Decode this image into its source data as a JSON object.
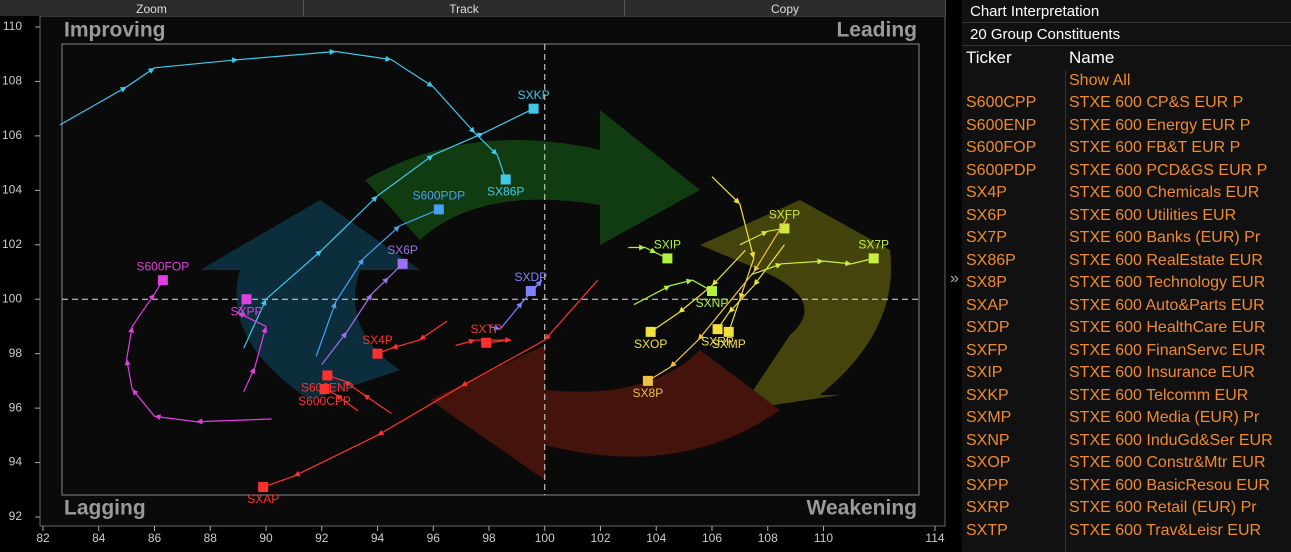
{
  "toolbar": [
    "Zoom",
    "Track",
    "Copy"
  ],
  "chart_data": {
    "type": "line",
    "quadrants": {
      "top_left": "Improving",
      "top_right": "Leading",
      "bottom_left": "Lagging",
      "bottom_right": "Weakening"
    },
    "xlim": [
      82,
      114
    ],
    "ylim": [
      92,
      110
    ],
    "xticks": [
      82,
      84,
      86,
      88,
      90,
      92,
      94,
      96,
      98,
      100,
      102,
      104,
      106,
      108,
      110,
      114
    ],
    "yticks": [
      92,
      94,
      96,
      98,
      100,
      102,
      104,
      106,
      108,
      110
    ],
    "center": [
      100,
      100
    ],
    "series": [
      {
        "name": "SXKP",
        "color": "#40c8e8",
        "x": [
          89.2,
          90,
          92,
          94,
          96,
          97.8,
          99.6
        ],
        "y": [
          98.2,
          100,
          101.8,
          103.8,
          105.3,
          106.1,
          107.0
        ]
      },
      {
        "name": "SX86P",
        "color": "#40c8e8",
        "x": [
          82.6,
          85,
          86,
          89,
          92.5,
          94.5,
          96,
          97.5,
          98.3,
          98.6
        ],
        "y": [
          106.4,
          107.8,
          108.5,
          108.8,
          109.1,
          108.8,
          107.8,
          106.1,
          105.3,
          104.4
        ]
      },
      {
        "name": "S600PDP",
        "color": "#4aa0f0",
        "x": [
          91.8,
          92.5,
          93.5,
          94.8,
          96.2
        ],
        "y": [
          97.9,
          99.9,
          101.5,
          102.7,
          103.3
        ]
      },
      {
        "name": "SX6P",
        "color": "#a070f0",
        "x": [
          92,
          92.9,
          93.8,
          94.4,
          94.9
        ],
        "y": [
          97.6,
          98.8,
          100.2,
          100.8,
          101.3
        ]
      },
      {
        "name": "S600FOP",
        "color": "#e040e0",
        "x": [
          90.2,
          87.5,
          86,
          85.2,
          85,
          85.2,
          86,
          86.3
        ],
        "y": [
          95.6,
          95.5,
          95.7,
          96.7,
          97.8,
          99,
          100.2,
          100.7
        ]
      },
      {
        "name": "SXPP",
        "color": "#e040e0",
        "x": [
          89.2,
          89.6,
          90,
          89,
          89.3
        ],
        "y": [
          96.6,
          97.5,
          99,
          99.5,
          100.0
        ]
      },
      {
        "name": "SXDP",
        "color": "#8080ff",
        "x": [
          98,
          98.4,
          99.2,
          99.9,
          99.5
        ],
        "y": [
          99,
          98.9,
          99.9,
          100.7,
          100.3
        ]
      },
      {
        "name": "SXTP",
        "color": "#ff3030",
        "x": [
          96.8,
          97.5,
          98.8,
          97.9
        ],
        "y": [
          98.3,
          98.5,
          98.5,
          98.4
        ]
      },
      {
        "name": "S600ENP",
        "color": "#ff3030",
        "x": [
          94.5,
          93.5,
          92.8,
          92.2
        ],
        "y": [
          95.8,
          96.5,
          97,
          97.2
        ]
      },
      {
        "name": "S600CPP",
        "color": "#ff3030",
        "x": [
          93.3,
          92.5,
          92.1
        ],
        "y": [
          95.9,
          96.5,
          96.7
        ]
      },
      {
        "name": "SX4P",
        "color": "#ff3030",
        "x": [
          96.5,
          95.5,
          94.5,
          94
        ],
        "y": [
          99.2,
          98.5,
          98.2,
          98.0
        ]
      },
      {
        "name": "SXAP",
        "color": "#ff3030",
        "x": [
          101.9,
          100,
          97,
          94,
          91,
          89.9
        ],
        "y": [
          100.7,
          98.5,
          96.8,
          95,
          93.5,
          93.1
        ]
      },
      {
        "name": "SXIP",
        "color": "#b0f040",
        "x": [
          103,
          103.6,
          104,
          104.4
        ],
        "y": [
          101.9,
          101.9,
          101.7,
          101.5
        ]
      },
      {
        "name": "SXFP",
        "color": "#d0e840",
        "x": [
          107,
          108,
          108.6
        ],
        "y": [
          102,
          102.5,
          102.6
        ]
      },
      {
        "name": "SX7P",
        "color": "#c8f040",
        "x": [
          107.4,
          108.5,
          110,
          111,
          111.8
        ],
        "y": [
          100.9,
          101.3,
          101.4,
          101.3,
          101.5
        ]
      },
      {
        "name": "SXNP",
        "color": "#b0f040",
        "x": [
          103.2,
          104.5,
          105.3,
          106
        ],
        "y": [
          99.8,
          100.5,
          100.7,
          100.3
        ]
      },
      {
        "name": "SXOP",
        "color": "#f0e040",
        "x": [
          107.2,
          106,
          104.8,
          103.8
        ],
        "y": [
          101.8,
          100.5,
          99.5,
          98.8
        ]
      },
      {
        "name": "SXRP",
        "color": "#f0e040",
        "x": [
          108.6,
          107.5,
          106.6,
          106.2
        ],
        "y": [
          102,
          100.5,
          99.5,
          98.9
        ]
      },
      {
        "name": "SXMP",
        "color": "#f0e040",
        "x": [
          106,
          107,
          107.5,
          107,
          106.6
        ],
        "y": [
          104.5,
          103.5,
          101.5,
          100,
          98.8
        ]
      },
      {
        "name": "SX8P",
        "color": "#f0c040",
        "x": [
          108.7,
          107.5,
          105.5,
          104.5,
          103.7
        ],
        "y": [
          103,
          101,
          98.5,
          97.5,
          97.0
        ]
      }
    ]
  },
  "panel": {
    "title": "Chart Interpretation",
    "subtitle": "20 Group Constituents",
    "columns": [
      "Ticker",
      "Name"
    ],
    "show_all": "Show All",
    "rows": [
      [
        "S600CPP",
        "STXE 600 CP&S EUR P"
      ],
      [
        "S600ENP",
        "STXE 600 Energy EUR P"
      ],
      [
        "S600FOP",
        "STXE 600 FB&T EUR P"
      ],
      [
        "S600PDP",
        "STXE 600 PCD&GS EUR P"
      ],
      [
        "SX4P",
        "STXE 600 Chemicals EUR"
      ],
      [
        "SX6P",
        "STXE 600 Utilities EUR"
      ],
      [
        "SX7P",
        "STXE 600 Banks (EUR) Pr"
      ],
      [
        "SX86P",
        "STXE 600 RealEstate EUR"
      ],
      [
        "SX8P",
        "STXE 600 Technology EUR"
      ],
      [
        "SXAP",
        "STXE 600 Auto&Parts EUR"
      ],
      [
        "SXDP",
        "STXE 600 HealthCare EUR"
      ],
      [
        "SXFP",
        "STXE 600 FinanServc EUR"
      ],
      [
        "SXIP",
        "STXE 600 Insurance EUR"
      ],
      [
        "SXKP",
        "STXE 600 Telcomm EUR"
      ],
      [
        "SXMP",
        "STXE 600 Media (EUR) Pr"
      ],
      [
        "SXNP",
        "STXE 600 InduGd&Ser EUR"
      ],
      [
        "SXOP",
        "STXE 600 Constr&Mtr EUR"
      ],
      [
        "SXPP",
        "STXE 600 BasicResou EUR"
      ],
      [
        "SXRP",
        "STXE 600 Retail (EUR) Pr"
      ],
      [
        "SXTP",
        "STXE 600 Trav&Leisr EUR"
      ]
    ]
  }
}
